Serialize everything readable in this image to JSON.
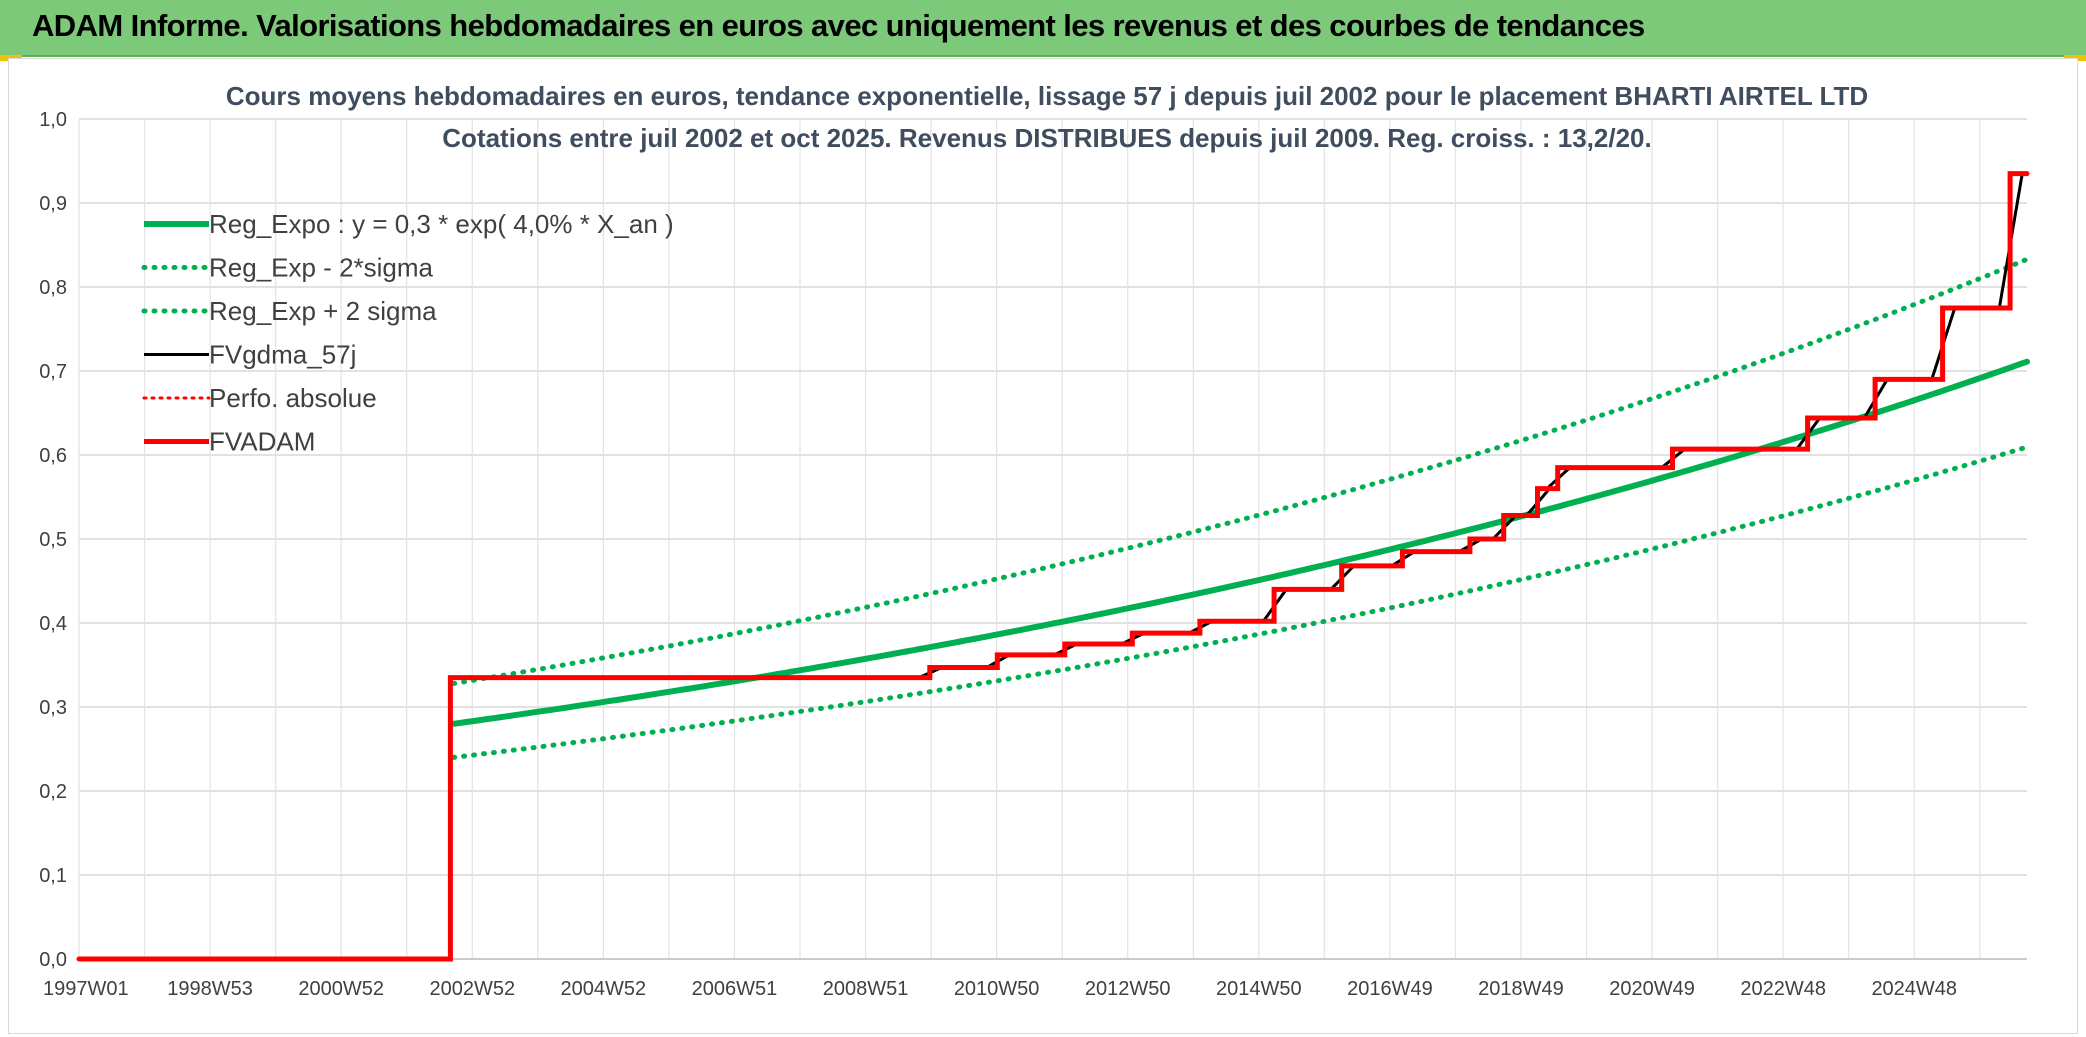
{
  "banner": {
    "title": "ADAM Informe. Valorisations hebdomadaires en euros avec uniquement les revenus et des courbes de tendances",
    "bg_color": "#7dc97a"
  },
  "chart_data": {
    "type": "line",
    "title_line1": "Cours moyens hebdomadaires en euros, tendance exponentielle, lissage 57 j depuis juil 2002 pour le placement BHARTI AIRTEL LTD",
    "title_line2": "Cotations entre juil 2002 et oct 2025. Revenus DISTRIBUES depuis juil 2009. Reg. croiss. : 13,2/20.",
    "x_ticks": [
      "1997W01",
      "1998W53",
      "2000W52",
      "2002W52",
      "2004W52",
      "2006W51",
      "2008W51",
      "2010W50",
      "2012W50",
      "2014W50",
      "2016W49",
      "2018W49",
      "2020W49",
      "2022W48",
      "2024W48"
    ],
    "x_range": [
      1997.0,
      2025.85
    ],
    "y_ticks": [
      "0,0",
      "0,1",
      "0,2",
      "0,3",
      "0,4",
      "0,5",
      "0,6",
      "0,7",
      "0,8",
      "0,9",
      "1,0"
    ],
    "ylim": [
      0,
      1.0
    ],
    "grid": true,
    "legend_position": "top-left",
    "series": [
      {
        "name": "Reg_Expo : y = 0,3 * exp( 4,0% *  X_an )",
        "color": "#00b050",
        "style": "solid",
        "width": 6,
        "x": [
          2002.55,
          2025.85
        ],
        "model": {
          "type": "exp",
          "a": 0.28,
          "rate": 0.04,
          "x0": 2002.55
        }
      },
      {
        "name": "Reg_Exp - 2*sigma",
        "color": "#00b050",
        "style": "dotted",
        "width": 5,
        "x": [
          2002.55,
          2025.85
        ],
        "model": {
          "type": "exp",
          "a": 0.24,
          "rate": 0.04,
          "x0": 2002.55
        }
      },
      {
        "name": "Reg_Exp + 2 sigma",
        "color": "#00b050",
        "style": "dotted",
        "width": 5,
        "x": [
          2002.55,
          2025.85
        ],
        "model": {
          "type": "exp",
          "a": 0.328,
          "rate": 0.04,
          "x0": 2002.55
        }
      },
      {
        "name": "FVgdma_57j",
        "color": "#000000",
        "style": "solid",
        "width": 3,
        "smoothed": true
      },
      {
        "name": "Perfo. absolue",
        "color": "#ff0000",
        "style": "dotted",
        "width": 3
      },
      {
        "name": "FVADAM",
        "color": "#ff0000",
        "style": "solid",
        "width": 5,
        "steps": [
          [
            1997.0,
            0.0
          ],
          [
            2002.5,
            0.335
          ],
          [
            2009.6,
            0.347
          ],
          [
            2010.6,
            0.362
          ],
          [
            2011.6,
            0.375
          ],
          [
            2012.6,
            0.388
          ],
          [
            2013.6,
            0.402
          ],
          [
            2014.7,
            0.44
          ],
          [
            2015.7,
            0.468
          ],
          [
            2016.6,
            0.485
          ],
          [
            2017.6,
            0.5
          ],
          [
            2018.1,
            0.528
          ],
          [
            2018.6,
            0.56
          ],
          [
            2018.9,
            0.585
          ],
          [
            2020.6,
            0.607
          ],
          [
            2022.6,
            0.644
          ],
          [
            2023.6,
            0.69
          ],
          [
            2024.6,
            0.775
          ],
          [
            2025.6,
            0.935
          ],
          [
            2025.85,
            0.935
          ]
        ]
      }
    ]
  }
}
